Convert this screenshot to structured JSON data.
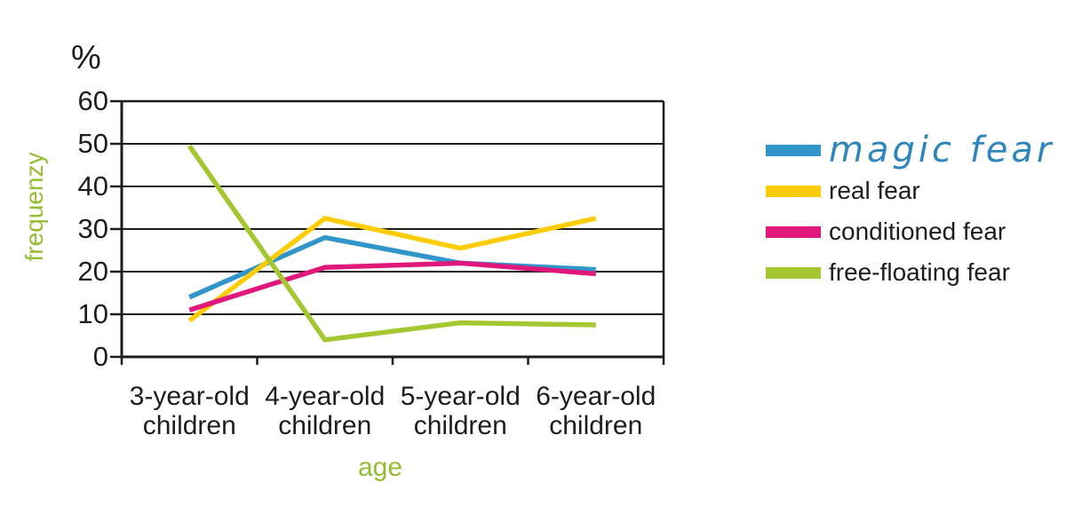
{
  "chart": {
    "percent_label": "%"
  },
  "chart_data": {
    "type": "line",
    "title": "",
    "categories": [
      "3-year-old children",
      "4-year-old children",
      "5-year-old children",
      "6-year-old children"
    ],
    "series": [
      {
        "name": "magic fear",
        "color": "#3095c8",
        "values": [
          14,
          28,
          22,
          20.5
        ]
      },
      {
        "name": "real fear",
        "color": "#fccd06",
        "values": [
          8.5,
          32.5,
          25.5,
          32.5
        ]
      },
      {
        "name": "conditioned fear",
        "color": "#e0187c",
        "values": [
          11,
          21,
          22,
          19.5
        ]
      },
      {
        "name": "free-floating fear",
        "color": "#a4c630",
        "values": [
          49.5,
          4,
          8,
          7.5
        ]
      }
    ],
    "xlabel": "age",
    "ylabel": "frequenzy",
    "ylim": [
      0,
      60
    ],
    "y_ticks": [
      0,
      10,
      20,
      30,
      40,
      50,
      60
    ],
    "grid": true,
    "legend_position": "right",
    "axis_color": "#1d1d1b",
    "text_color": "#1d1d1b",
    "axis_title_color": "#94bd33",
    "legend_script_text_color": "#2e86bd"
  }
}
